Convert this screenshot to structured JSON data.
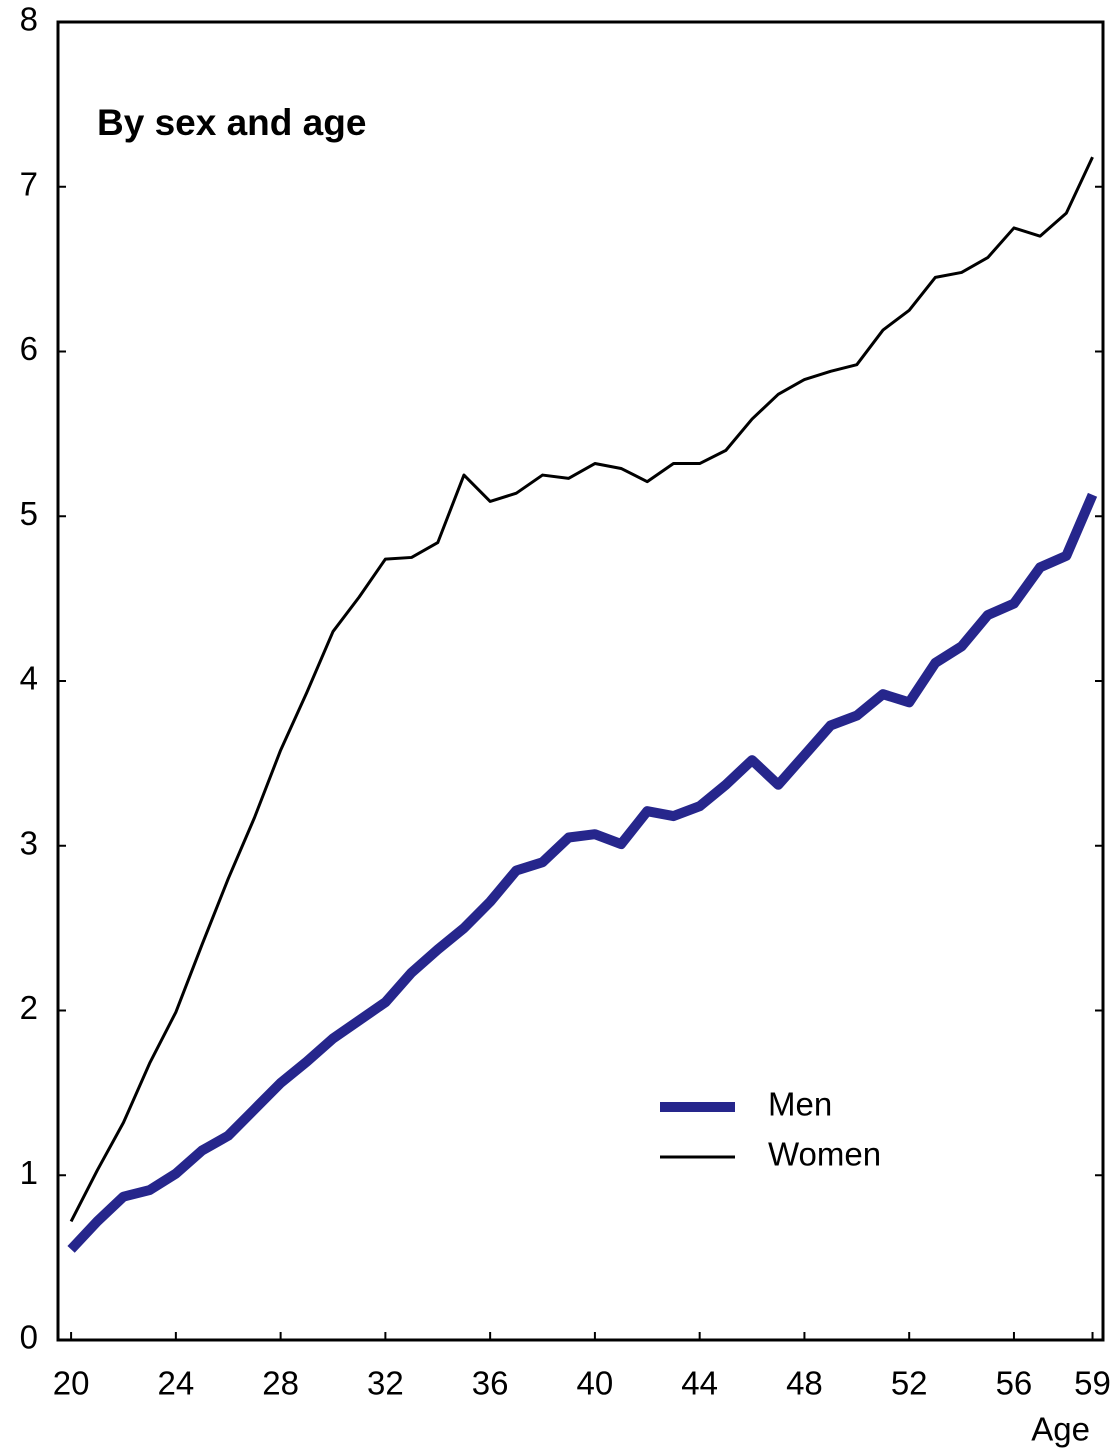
{
  "chart_data": {
    "type": "line",
    "title": "By sex and age",
    "x_label": "Age",
    "x": [
      20,
      21,
      22,
      23,
      24,
      25,
      26,
      27,
      28,
      29,
      30,
      31,
      32,
      33,
      34,
      35,
      36,
      37,
      38,
      39,
      40,
      41,
      42,
      43,
      44,
      45,
      46,
      47,
      48,
      49,
      50,
      51,
      52,
      53,
      54,
      55,
      56,
      57,
      58,
      59
    ],
    "series": [
      {
        "name": "Men",
        "color": "#26268c",
        "width": 10,
        "values": [
          0.55,
          0.72,
          0.87,
          0.91,
          1.01,
          1.15,
          1.24,
          1.4,
          1.56,
          1.69,
          1.83,
          1.94,
          2.05,
          2.23,
          2.37,
          2.5,
          2.66,
          2.85,
          2.9,
          3.05,
          3.07,
          3.01,
          3.21,
          3.18,
          3.24,
          3.37,
          3.52,
          3.37,
          3.55,
          3.73,
          3.79,
          3.92,
          3.87,
          4.11,
          4.21,
          4.4,
          4.47,
          4.69,
          4.76,
          5.13
        ]
      },
      {
        "name": "Women",
        "color": "#000000",
        "width": 3,
        "values": [
          0.72,
          1.03,
          1.32,
          1.68,
          1.99,
          2.4,
          2.8,
          3.17,
          3.58,
          3.93,
          4.3,
          4.51,
          4.74,
          4.75,
          4.84,
          5.25,
          5.09,
          5.14,
          5.25,
          5.23,
          5.32,
          5.29,
          5.21,
          5.32,
          5.32,
          5.4,
          5.59,
          5.74,
          5.83,
          5.88,
          5.92,
          6.13,
          6.25,
          6.45,
          6.48,
          6.57,
          6.75,
          6.7,
          6.84,
          7.18
        ]
      }
    ],
    "xlim": [
      19.5,
      59.4
    ],
    "xticks": [
      20,
      24,
      28,
      32,
      36,
      40,
      44,
      48,
      52,
      56,
      59
    ],
    "ylim": [
      0,
      8
    ],
    "yticks": [
      0,
      1,
      2,
      3,
      4,
      5,
      6,
      7,
      8
    ],
    "grid": false
  }
}
